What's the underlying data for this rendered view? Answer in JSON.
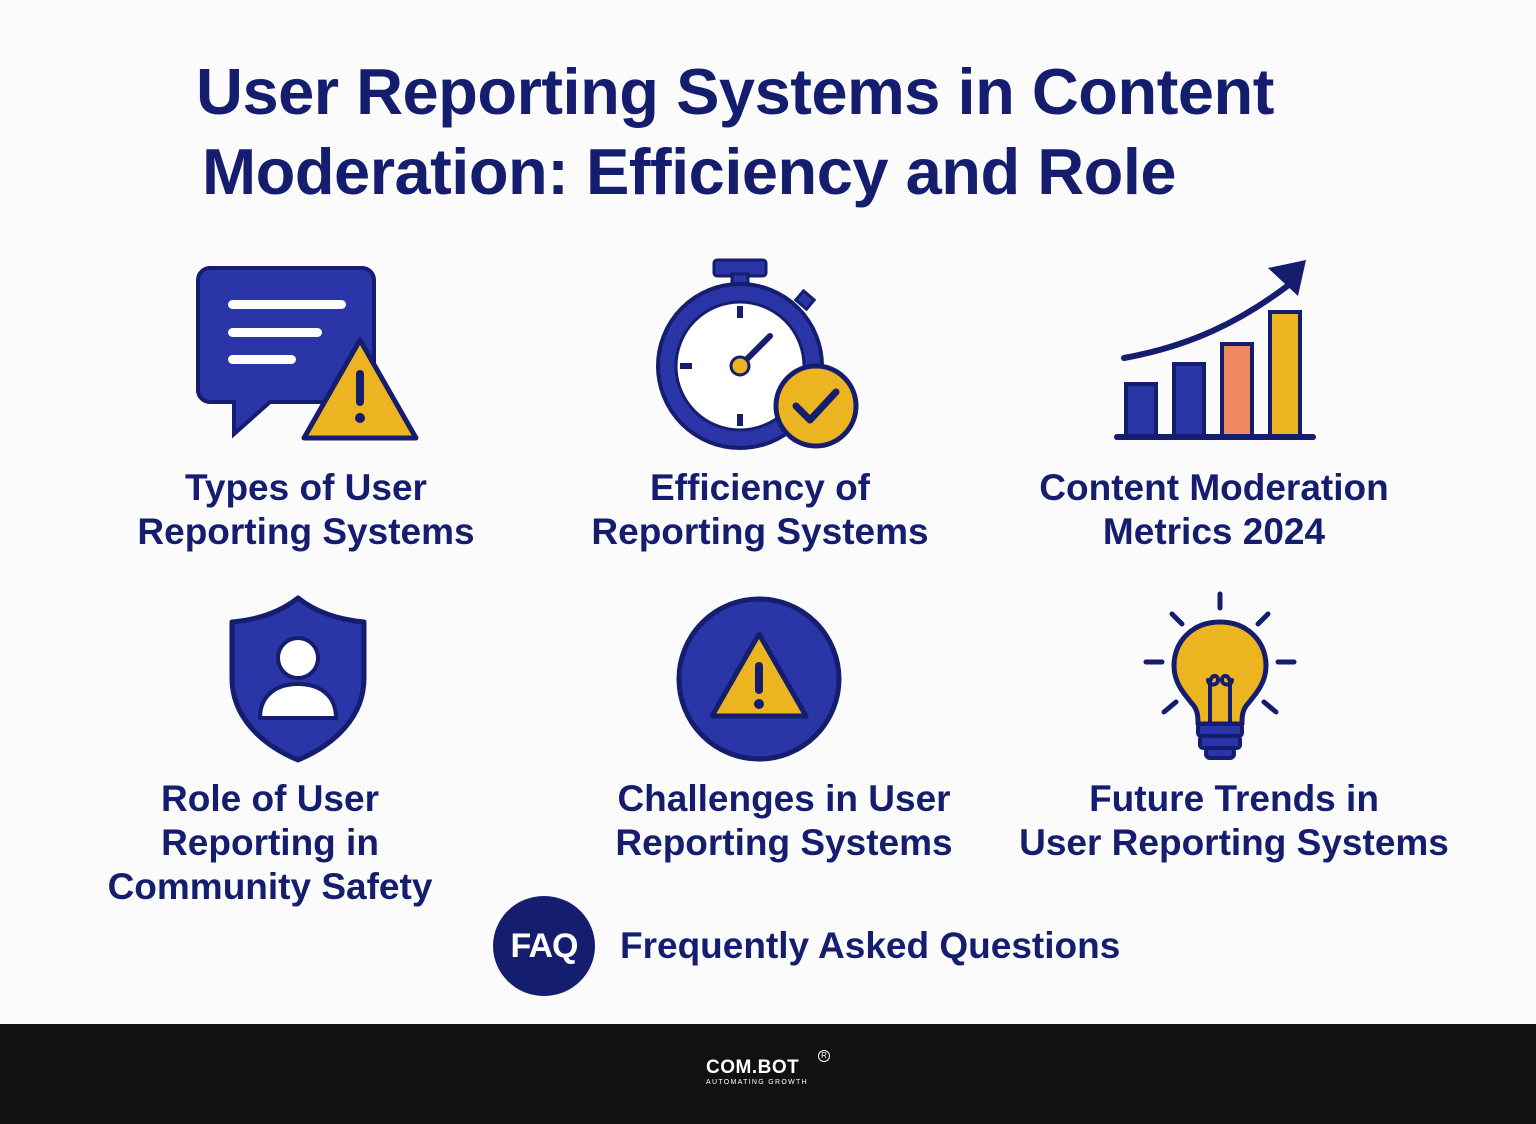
{
  "title": {
    "line1": "User Reporting Systems in Content",
    "line2": "Moderation: Efficiency and Role"
  },
  "items": [
    {
      "icon": "chat-warning-icon",
      "lines": [
        "Types of User",
        "Reporting Systems"
      ]
    },
    {
      "icon": "stopwatch-check-icon",
      "lines": [
        "Efficiency of",
        "Reporting Systems"
      ]
    },
    {
      "icon": "bar-chart-growth-icon",
      "lines": [
        "Content Moderation",
        "Metrics 2024"
      ]
    },
    {
      "icon": "shield-user-icon",
      "lines": [
        "Role of User",
        "Reporting in",
        "Community Safety"
      ]
    },
    {
      "icon": "warning-circle-icon",
      "lines": [
        "Challenges in User",
        "Reporting Systems"
      ]
    },
    {
      "icon": "lightbulb-icon",
      "lines": [
        "Future Trends in",
        "User Reporting Systems"
      ]
    }
  ],
  "faq": {
    "badge": "FAQ",
    "label": "Frequently Asked Questions"
  },
  "footer": {
    "logo": "COM.BOT",
    "tagline": "AUTOMATING GROWTH",
    "registered": "R"
  },
  "colors": {
    "navy": "#141d6e",
    "blue": "#2a35a8",
    "yellow": "#edb421",
    "orange": "#f0895f",
    "footer": "#111111"
  }
}
